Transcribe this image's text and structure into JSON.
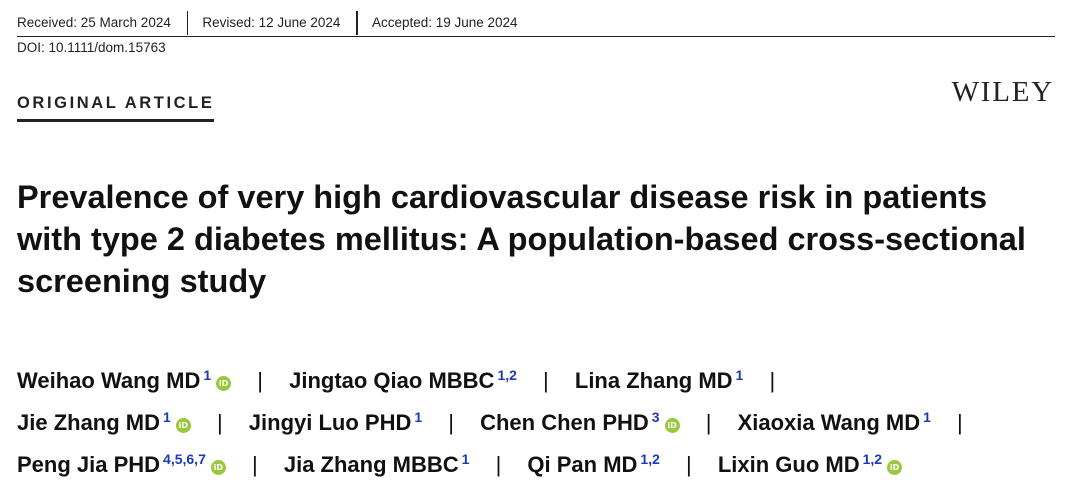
{
  "header": {
    "received": "Received: 25 March 2024",
    "revised": "Revised: 12 June 2024",
    "accepted": "Accepted: 19 June 2024",
    "doi": "DOI: 10.1111/dom.15763"
  },
  "section_label": "ORIGINAL ARTICLE",
  "publisher": "WILEY",
  "title": "Prevalence of very high cardiovascular disease risk in patients with type 2 diabetes mellitus: A population-based cross-sectional screening study",
  "authors": {
    "separator": "|",
    "orcid_glyph": "iD",
    "list": [
      {
        "name": "Weihao Wang MD",
        "aff": "1"
      },
      {
        "name": "Jingtao Qiao MBBC",
        "aff": "1,2"
      },
      {
        "name": "Lina Zhang MD",
        "aff": "1"
      },
      {
        "name": "Jie Zhang MD",
        "aff": "1"
      },
      {
        "name": "Jingyi Luo PHD",
        "aff": "1"
      },
      {
        "name": "Chen Chen PHD",
        "aff": "3"
      },
      {
        "name": "Xiaoxia Wang MD",
        "aff": "1"
      },
      {
        "name": "Peng Jia PHD",
        "aff": "4,5,6,7"
      },
      {
        "name": "Jia Zhang MBBC",
        "aff": "1"
      },
      {
        "name": "Qi Pan MD",
        "aff": "1,2"
      },
      {
        "name": "Lixin Guo MD",
        "aff": "1,2"
      }
    ]
  },
  "colors": {
    "text": "#111111",
    "affiliation_link": "#1a3bb5",
    "orcid": "#9ac83d"
  }
}
